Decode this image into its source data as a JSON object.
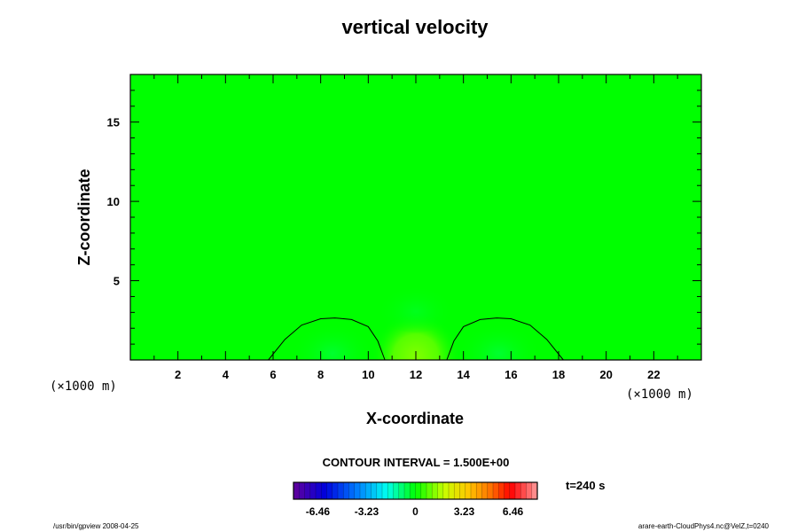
{
  "chart_data": {
    "type": "heatmap",
    "title": "vertical velocity",
    "xlabel": "X-coordinate",
    "ylabel": "Z-coordinate",
    "x_unit_label": "(×1000 m)",
    "y_unit_label": "(×1000 m)",
    "xlim": [
      0,
      24
    ],
    "ylim": [
      0,
      18
    ],
    "xticks": [
      2,
      4,
      6,
      8,
      10,
      12,
      14,
      16,
      18,
      20,
      22
    ],
    "yticks": [
      5,
      10,
      15
    ],
    "contour_interval_label": "CONTOUR INTERVAL = 1.500E+00",
    "time_label": "t=240 s",
    "colorbar_ticks": [
      "-6.46",
      "-3.23",
      "0",
      "3.23",
      "6.46"
    ],
    "colorbar_range": [
      -8.07,
      8.07
    ],
    "features": [
      {
        "type": "updraft",
        "x": 12,
        "z": 0.8,
        "value": 1.2
      },
      {
        "type": "downdraft",
        "x": 8.5,
        "z": 0.8,
        "value": -0.4
      },
      {
        "type": "downdraft",
        "x": 15.5,
        "z": 0.8,
        "value": -0.4
      }
    ],
    "zero_contours": [
      {
        "x": [
          5.8,
          6.5,
          7.2,
          8.0,
          8.6,
          9.3,
          10.0,
          10.4,
          10.7
        ],
        "z": [
          0,
          1.3,
          2.2,
          2.6,
          2.65,
          2.55,
          2.1,
          1.2,
          0
        ]
      },
      {
        "x": [
          13.3,
          13.6,
          14.0,
          14.7,
          15.4,
          16.0,
          16.8,
          17.5,
          18.2
        ],
        "z": [
          0,
          1.2,
          2.1,
          2.55,
          2.65,
          2.6,
          2.2,
          1.3,
          0
        ]
      }
    ]
  },
  "footer": {
    "left": "/usr/bin/gpview 2008-04-25",
    "right": "arare-earth-CloudPhys4.nc@VelZ,t=0240"
  }
}
